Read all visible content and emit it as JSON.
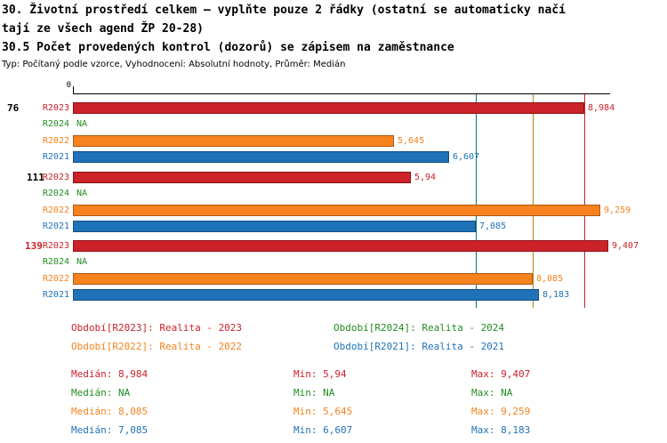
{
  "colors": {
    "fill": {
      "red": "#cc2229",
      "green": "#228b22",
      "orange": "#f5821e",
      "blue": "#1f72b8",
      "teal": "#007878",
      "olive": "#b8860b",
      "black": "#000000"
    },
    "border": {
      "red": "#8c1216",
      "green": "#14610f",
      "orange": "#b05a10",
      "blue": "#144e83"
    }
  },
  "header": {
    "title_line1": "30. Životní prostředí celkem – vyplňte pouze 2 řádky (ostatní se automaticky načí",
    "title_line2": "tají ze všech agend ŽP 20-28)",
    "subtitle": "30.5 Počet provedených kontrol (dozorů) se zápisem na zaměstnance",
    "meta": "Typ: Počítaný podle vzorce, Vyhodnocení: Absolutní hodnoty, Průměr: Medián"
  },
  "chart_data": {
    "type": "bar",
    "orientation": "horizontal",
    "title": "30.5 Počet provedených kontrol (dozorů) se zápisem na zaměstnance",
    "xlabel": "",
    "ylabel": "",
    "axis": {
      "origin_label": "0",
      "min": 0,
      "max": 9.45,
      "grid": false
    },
    "groups": [
      {
        "label": "76",
        "label_color": "black",
        "bars": [
          {
            "series": "R2023",
            "color": "red",
            "value": 8.984,
            "value_label": "8,984"
          },
          {
            "series": "R2024",
            "color": "green",
            "value": null,
            "value_label": "NA"
          },
          {
            "series": "R2022",
            "color": "orange",
            "value": 5.645,
            "value_label": "5,645"
          },
          {
            "series": "R2021",
            "color": "blue",
            "value": 6.607,
            "value_label": "6,607"
          }
        ]
      },
      {
        "label": "111",
        "label_color": "black",
        "bars": [
          {
            "series": "R2023",
            "color": "red",
            "value": 5.94,
            "value_label": "5,94"
          },
          {
            "series": "R2024",
            "color": "green",
            "value": null,
            "value_label": "NA"
          },
          {
            "series": "R2022",
            "color": "orange",
            "value": 9.259,
            "value_label": "9,259"
          },
          {
            "series": "R2021",
            "color": "blue",
            "value": 7.085,
            "value_label": "7,085"
          }
        ]
      },
      {
        "label": "139",
        "label_color": "red",
        "bars": [
          {
            "series": "R2023",
            "color": "red",
            "value": 9.407,
            "value_label": "9,407"
          },
          {
            "series": "R2024",
            "color": "green",
            "value": null,
            "value_label": "NA"
          },
          {
            "series": "R2022",
            "color": "orange",
            "value": 8.085,
            "value_label": "8,085"
          },
          {
            "series": "R2021",
            "color": "blue",
            "value": 8.183,
            "value_label": "8,183"
          }
        ]
      }
    ],
    "median_lines": [
      {
        "value": 7.085,
        "color": "teal"
      },
      {
        "value": 8.085,
        "color": "olive"
      },
      {
        "value": 8.984,
        "color": "red"
      }
    ]
  },
  "legend": [
    {
      "text": "Období[R2023]: Realita - 2023",
      "color": "red"
    },
    {
      "text": "Období[R2024]: Realita - 2024",
      "color": "green"
    },
    {
      "text": "Období[R2022]: Realita - 2022",
      "color": "orange"
    },
    {
      "text": "Období[R2021]: Realita - 2021",
      "color": "blue"
    }
  ],
  "stats": [
    {
      "color": "red",
      "median": "Medián: 8,984",
      "min": "Min: 5,94",
      "max": "Max: 9,407"
    },
    {
      "color": "green",
      "median": "Medián: NA",
      "min": "Min: NA",
      "max": "Max: NA"
    },
    {
      "color": "orange",
      "median": "Medián: 8,085",
      "min": "Min: 5,645",
      "max": "Max: 9,259"
    },
    {
      "color": "blue",
      "median": "Medián: 7,085",
      "min": "Min: 6,607",
      "max": "Max: 8,183"
    }
  ]
}
